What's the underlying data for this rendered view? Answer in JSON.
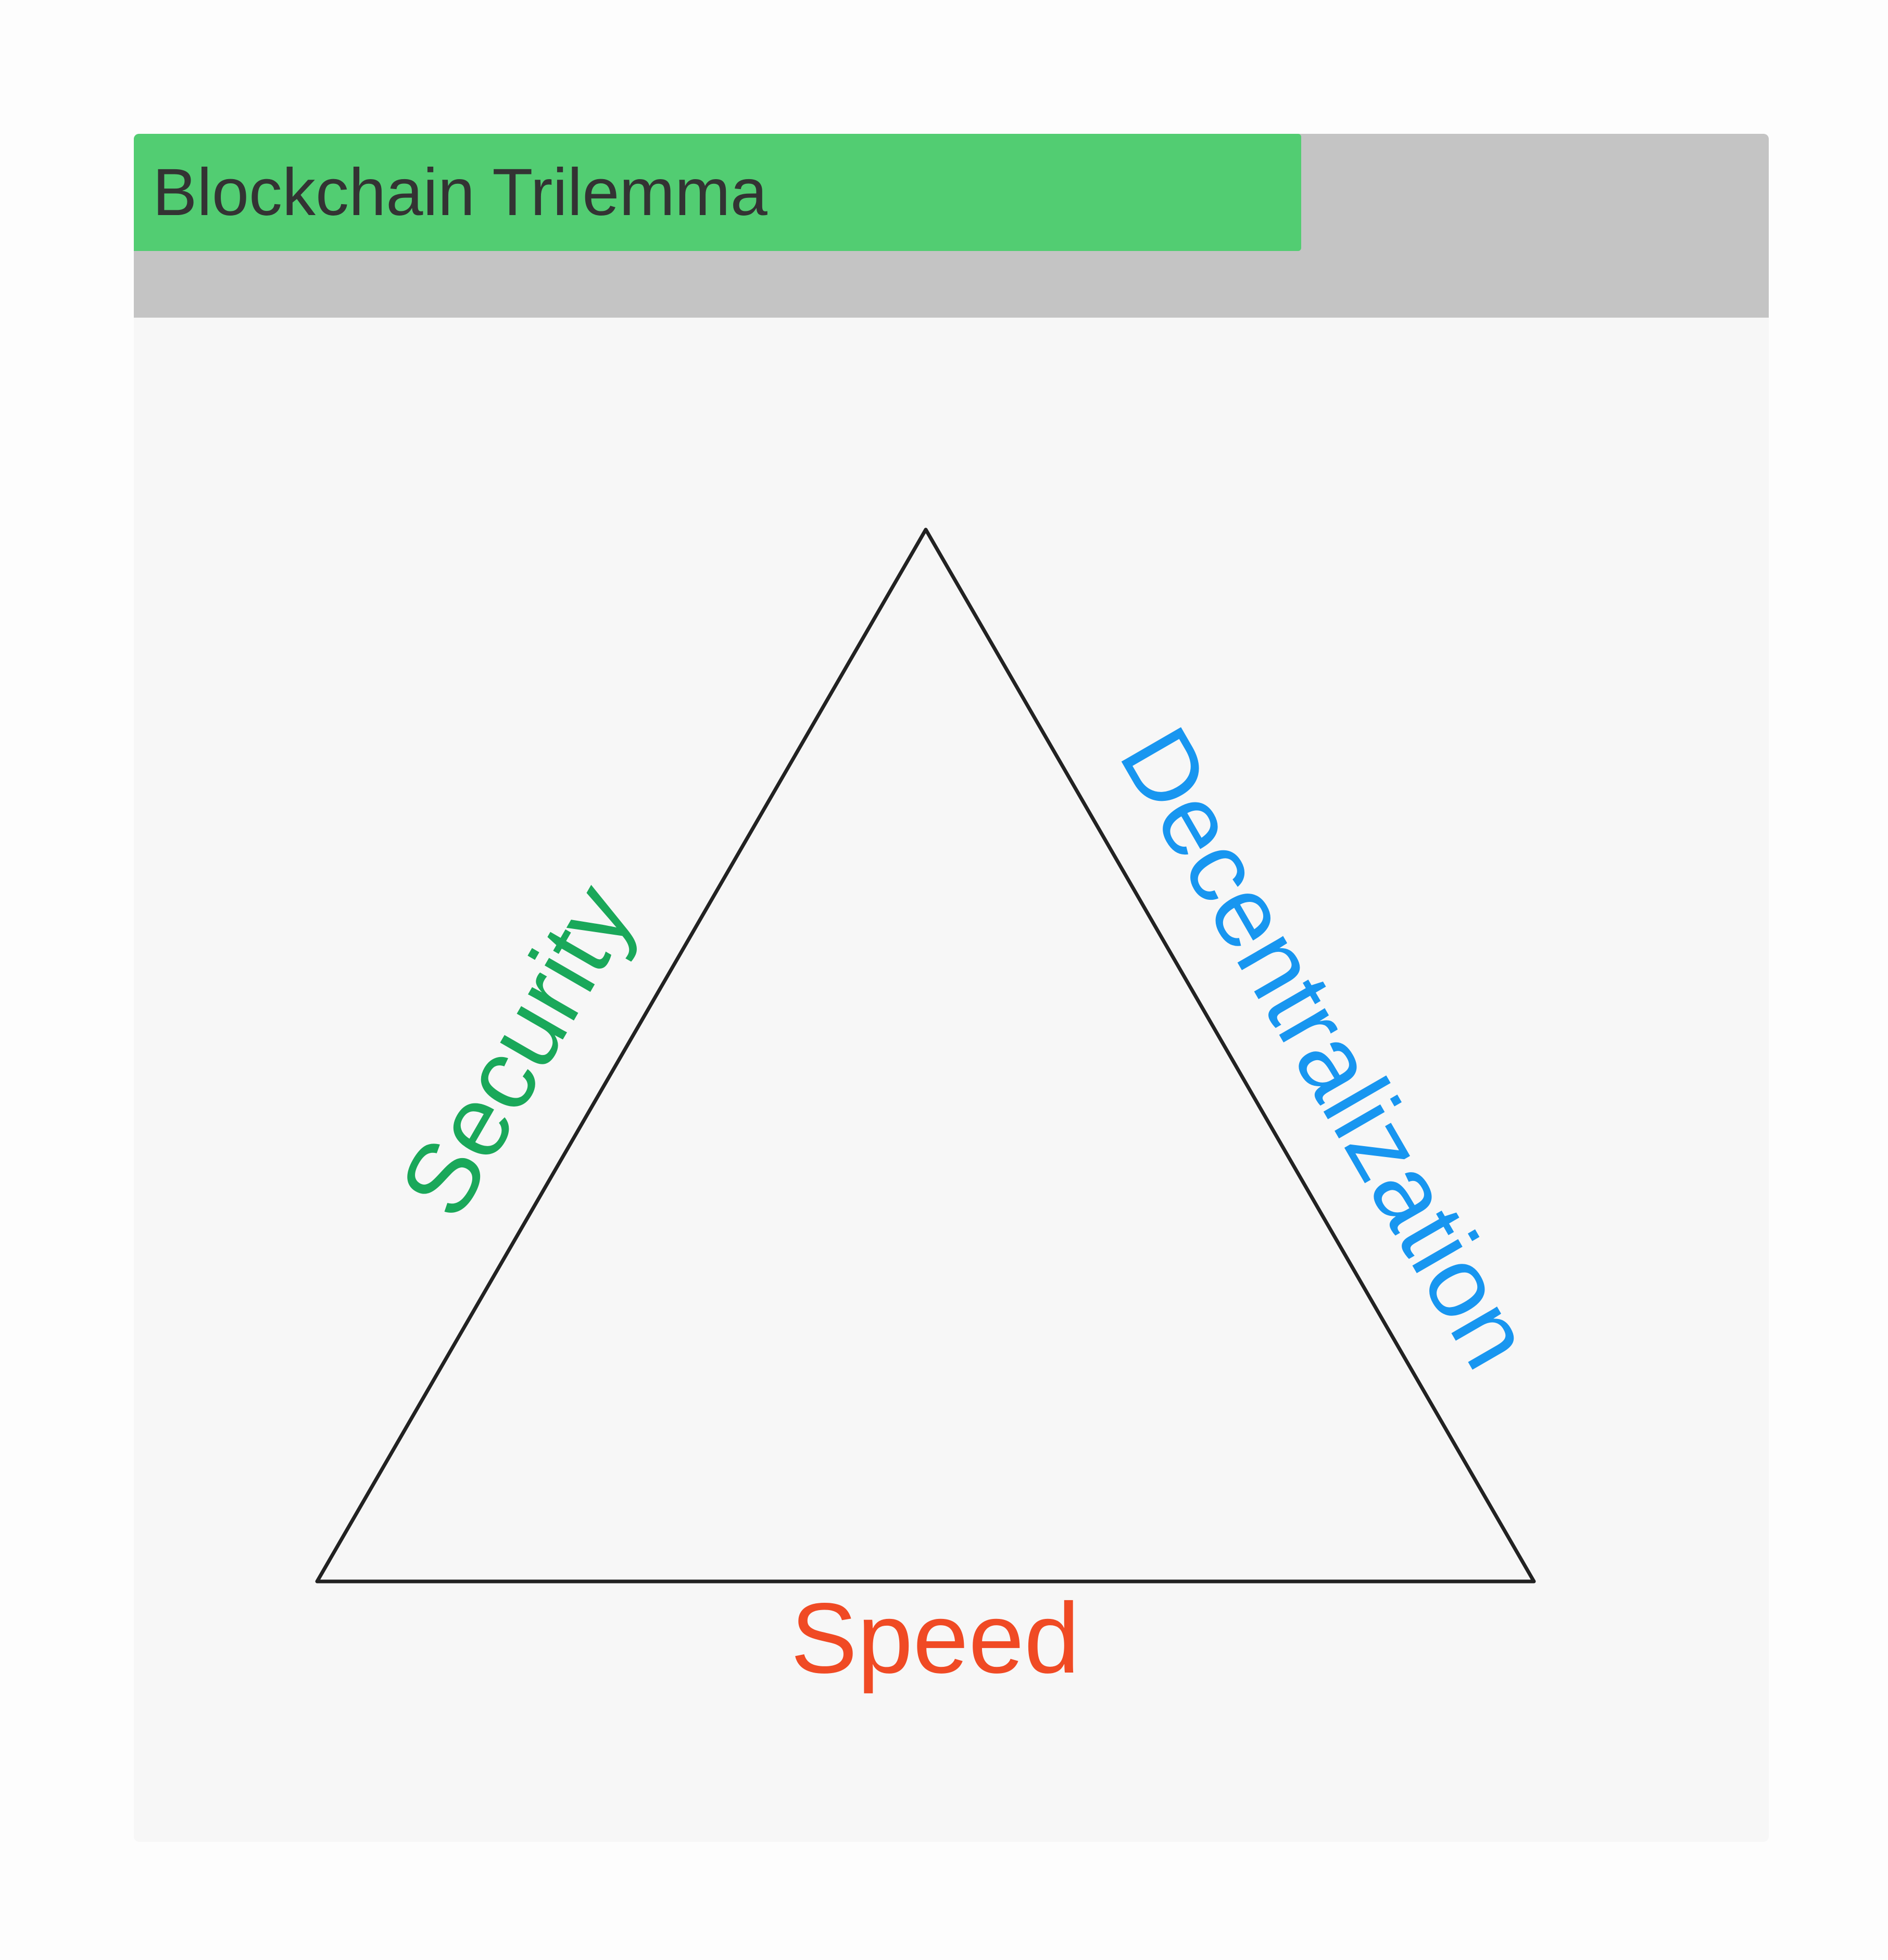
{
  "header": {
    "title": "Blockchain Trilemma",
    "progress_fraction": 0.714,
    "progress_color": "#52cd72",
    "track_color": "#c4c4c4"
  },
  "diagram": {
    "shape": "triangle",
    "stroke_color": "#222222",
    "labels": {
      "left": {
        "text": "Security",
        "color": "#1aa85a"
      },
      "right": {
        "text": "Decentralization",
        "color": "#1896f0"
      },
      "bottom": {
        "text": "Speed",
        "color": "#f04a24"
      }
    }
  }
}
